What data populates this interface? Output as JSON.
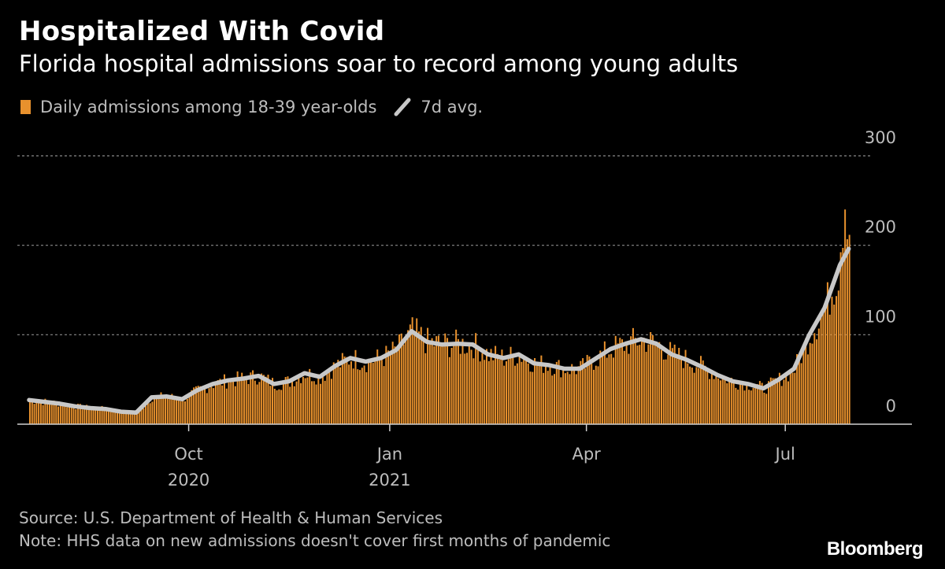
{
  "header": {
    "title": "Hospitalized With Covid",
    "subtitle": "Florida hospital admissions soar to record among young adults"
  },
  "legend": {
    "bars_label": "Daily admissions among 18-39 year-olds",
    "line_label": "7d avg.",
    "placement": "top-left"
  },
  "footer": {
    "source": "Source: U.S. Department of Health & Human Services",
    "note": "Note: HHS data on new admissions doesn't cover first months of pandemic",
    "logo": "Bloomberg"
  },
  "colors": {
    "background": "#000000",
    "bars": "#e8912d",
    "avg_line": "#c8c8c8",
    "grid": "#8a8a8a",
    "text_muted": "#bdbdbd"
  },
  "chart_data": {
    "type": "bar",
    "overlay": "line",
    "x_range": [
      "2020-07-20",
      "2021-08-02"
    ],
    "ylim": [
      0,
      300
    ],
    "y_ticks": [
      300,
      200,
      100,
      0
    ],
    "grid": true,
    "x_ticks": [
      {
        "date": "2020-10-01",
        "label": "Oct",
        "year": "2020"
      },
      {
        "date": "2021-01-01",
        "label": "Jan",
        "year": "2021"
      },
      {
        "date": "2021-04-01",
        "label": "Apr",
        "year": ""
      },
      {
        "date": "2021-07-01",
        "label": "Jul",
        "year": ""
      }
    ],
    "series": [
      {
        "name": "Daily admissions among 18-39 year-olds",
        "type": "bar",
        "estimated_peak": {
          "date": "2021-07-28",
          "value": 240
        }
      },
      {
        "name": "7d avg.",
        "type": "line",
        "points": [
          {
            "date": "2020-07-20",
            "value": 27
          },
          {
            "date": "2020-07-27",
            "value": 25
          },
          {
            "date": "2020-08-03",
            "value": 23
          },
          {
            "date": "2020-08-10",
            "value": 20
          },
          {
            "date": "2020-08-17",
            "value": 18
          },
          {
            "date": "2020-08-24",
            "value": 17
          },
          {
            "date": "2020-08-31",
            "value": 14
          },
          {
            "date": "2020-09-07",
            "value": 13
          },
          {
            "date": "2020-09-14",
            "value": 30
          },
          {
            "date": "2020-09-21",
            "value": 31
          },
          {
            "date": "2020-09-28",
            "value": 28
          },
          {
            "date": "2020-10-05",
            "value": 38
          },
          {
            "date": "2020-10-12",
            "value": 45
          },
          {
            "date": "2020-10-19",
            "value": 49
          },
          {
            "date": "2020-10-26",
            "value": 51
          },
          {
            "date": "2020-11-02",
            "value": 54
          },
          {
            "date": "2020-11-09",
            "value": 45
          },
          {
            "date": "2020-11-16",
            "value": 48
          },
          {
            "date": "2020-11-23",
            "value": 57
          },
          {
            "date": "2020-11-30",
            "value": 53
          },
          {
            "date": "2020-12-07",
            "value": 65
          },
          {
            "date": "2020-12-14",
            "value": 74
          },
          {
            "date": "2020-12-21",
            "value": 70
          },
          {
            "date": "2020-12-28",
            "value": 74
          },
          {
            "date": "2021-01-04",
            "value": 83
          },
          {
            "date": "2021-01-11",
            "value": 104
          },
          {
            "date": "2021-01-18",
            "value": 92
          },
          {
            "date": "2021-01-25",
            "value": 89
          },
          {
            "date": "2021-02-01",
            "value": 90
          },
          {
            "date": "2021-02-08",
            "value": 89
          },
          {
            "date": "2021-02-15",
            "value": 78
          },
          {
            "date": "2021-02-22",
            "value": 74
          },
          {
            "date": "2021-03-01",
            "value": 78
          },
          {
            "date": "2021-03-08",
            "value": 68
          },
          {
            "date": "2021-03-15",
            "value": 66
          },
          {
            "date": "2021-03-22",
            "value": 62
          },
          {
            "date": "2021-03-29",
            "value": 62
          },
          {
            "date": "2021-04-05",
            "value": 73
          },
          {
            "date": "2021-04-12",
            "value": 84
          },
          {
            "date": "2021-04-19",
            "value": 90
          },
          {
            "date": "2021-04-26",
            "value": 95
          },
          {
            "date": "2021-05-03",
            "value": 90
          },
          {
            "date": "2021-05-10",
            "value": 78
          },
          {
            "date": "2021-05-17",
            "value": 72
          },
          {
            "date": "2021-05-24",
            "value": 64
          },
          {
            "date": "2021-05-31",
            "value": 55
          },
          {
            "date": "2021-06-07",
            "value": 48
          },
          {
            "date": "2021-06-14",
            "value": 45
          },
          {
            "date": "2021-06-21",
            "value": 40
          },
          {
            "date": "2021-06-28",
            "value": 50
          },
          {
            "date": "2021-07-05",
            "value": 62
          },
          {
            "date": "2021-07-12",
            "value": 100
          },
          {
            "date": "2021-07-19",
            "value": 130
          },
          {
            "date": "2021-07-26",
            "value": 178
          },
          {
            "date": "2021-07-30",
            "value": 196
          }
        ]
      }
    ]
  }
}
